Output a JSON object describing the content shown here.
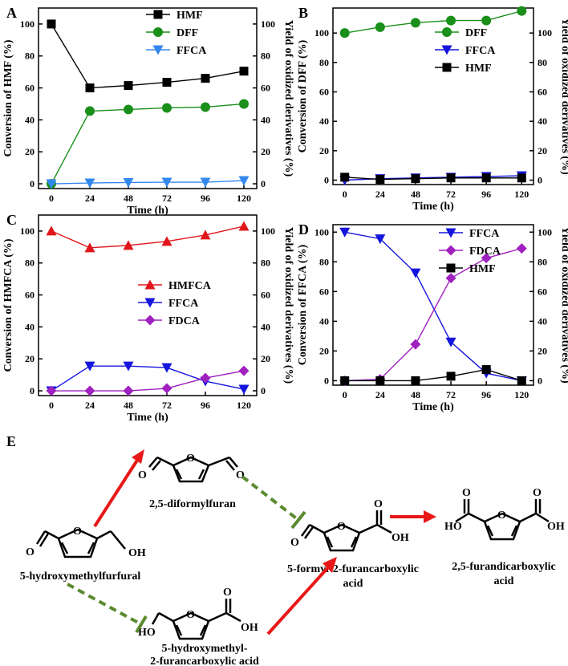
{
  "chart_data": [
    {
      "panel": "A",
      "type": "line",
      "x": [
        0,
        24,
        48,
        72,
        96,
        120
      ],
      "xlabel": "Time (h)",
      "ylabel": "Conversion of HMF (%)",
      "ylabel_right": "Yield of oxidized derivatives (%)",
      "ylim": [
        -3,
        110
      ],
      "xticks": [
        "0",
        "24",
        "48",
        "72",
        "96",
        "120"
      ],
      "yticks": [
        "0",
        "20",
        "40",
        "60",
        "80",
        "100"
      ],
      "yticks_right": [
        "0",
        "20",
        "40",
        "60",
        "80",
        "100"
      ],
      "legend": "top-right",
      "series": [
        {
          "name": "HMF",
          "color": "#000000",
          "marker": "square",
          "values": [
            100,
            60,
            61.5,
            63.5,
            66,
            70.5
          ]
        },
        {
          "name": "DFF",
          "color": "#1a8f1a",
          "marker": "circle",
          "values": [
            0,
            45.5,
            46.5,
            47.5,
            48,
            50
          ]
        },
        {
          "name": "FFCA",
          "color": "#3388ee",
          "marker": "triangle-down",
          "values": [
            0,
            0.5,
            0.8,
            1,
            1,
            2
          ]
        }
      ]
    },
    {
      "panel": "B",
      "type": "line",
      "x": [
        0,
        24,
        48,
        72,
        96,
        120
      ],
      "xlabel": "Time (h)",
      "ylabel": "Conversion of DFF (%)",
      "ylabel_right": "Yield of oxidized derivatives (%)",
      "ylim": [
        -3,
        117
      ],
      "xticks": [
        "0",
        "24",
        "48",
        "72",
        "96",
        "120"
      ],
      "yticks": [
        "0",
        "20",
        "40",
        "60",
        "80",
        "100"
      ],
      "yticks_right": [
        "0",
        "20",
        "40",
        "60",
        "80",
        "100"
      ],
      "legend": "top-right",
      "series": [
        {
          "name": "DFF",
          "color": "#1a8f1a",
          "marker": "circle",
          "values": [
            100,
            104,
            107,
            108.5,
            108.5,
            115
          ]
        },
        {
          "name": "FFCA",
          "color": "#1515dd",
          "marker": "triangle-down",
          "values": [
            0,
            1,
            1.5,
            2,
            2.5,
            3
          ]
        },
        {
          "name": "HMF",
          "color": "#000000",
          "marker": "square",
          "values": [
            2,
            0.5,
            1,
            1.5,
            1.5,
            1.5
          ]
        }
      ]
    },
    {
      "panel": "C",
      "type": "line",
      "x": [
        0,
        24,
        48,
        72,
        96,
        120
      ],
      "xlabel": "Time (h)",
      "ylabel": "Conversion of HMFCA (%)",
      "ylabel_right": "Yield of oxidized derivatives (%)",
      "ylim": [
        -3,
        110
      ],
      "xticks": [
        "0",
        "24",
        "48",
        "72",
        "96",
        "120"
      ],
      "yticks": [
        "0",
        "20",
        "40",
        "60",
        "80",
        "100"
      ],
      "yticks_right": [
        "0",
        "20",
        "40",
        "60",
        "80",
        "100"
      ],
      "legend": "center-right",
      "series": [
        {
          "name": "HMFCA",
          "color": "#e0161a",
          "marker": "triangle-up",
          "values": [
            100,
            89.5,
            91,
            93.5,
            97.5,
            103
          ]
        },
        {
          "name": "FFCA",
          "color": "#1515dd",
          "marker": "triangle-down",
          "values": [
            0,
            15.5,
            15.5,
            14.5,
            6,
            1
          ]
        },
        {
          "name": "FDCA",
          "color": "#a020c0",
          "marker": "diamond",
          "values": [
            0,
            0,
            0,
            1.5,
            8,
            12.5
          ]
        }
      ]
    },
    {
      "panel": "D",
      "type": "line",
      "x": [
        0,
        24,
        48,
        72,
        96,
        120
      ],
      "xlabel": "Time (h)",
      "ylabel": "Conversion of FFCA (%)",
      "ylabel_right": "Yield of oxidized derivatives (%)",
      "ylim": [
        -3,
        105
      ],
      "xticks": [
        "0",
        "24",
        "48",
        "72",
        "96",
        "120"
      ],
      "yticks": [
        "0",
        "20",
        "40",
        "60",
        "80",
        "100"
      ],
      "yticks_right": [
        "0",
        "20",
        "40",
        "60",
        "80",
        "100"
      ],
      "legend": "center-right",
      "series": [
        {
          "name": "FFCA",
          "color": "#1515dd",
          "marker": "triangle-down",
          "values": [
            100,
            95.5,
            72.5,
            26,
            5,
            0
          ]
        },
        {
          "name": "FDCA",
          "color": "#a020c0",
          "marker": "diamond",
          "values": [
            0,
            1,
            24.5,
            69,
            82.5,
            89
          ]
        },
        {
          "name": "HMF",
          "color": "#000000",
          "marker": "square",
          "values": [
            0,
            0,
            0,
            3,
            7.5,
            0
          ]
        }
      ]
    }
  ],
  "scheme": {
    "panel": "E",
    "compounds": {
      "hmf": {
        "name": "5-hydroxymethylfurfural",
        "atoms": [
          "O",
          "O",
          "OH"
        ]
      },
      "dff": {
        "name": "2,5-diformylfuran",
        "atoms": [
          "O",
          "O",
          "O"
        ]
      },
      "hmfca": {
        "name_line1": "5-hydroxymethyl-",
        "name_line2": "2-furancarboxylic acid",
        "atoms": [
          "HO",
          "O",
          "O",
          "OH"
        ]
      },
      "ffca": {
        "name_line1": "5-formyl-2-furancarboxylic",
        "name_line2": "acid",
        "atoms": [
          "O",
          "O",
          "O",
          "OH"
        ]
      },
      "fdca": {
        "name_line1": "2,5-furandicarboxylic",
        "name_line2": "acid",
        "atoms": [
          "HO",
          "O",
          "O",
          "O",
          "OH"
        ]
      }
    },
    "arrow_colors": {
      "active": "#e81818",
      "inhibited": "#5a8a2e"
    }
  }
}
